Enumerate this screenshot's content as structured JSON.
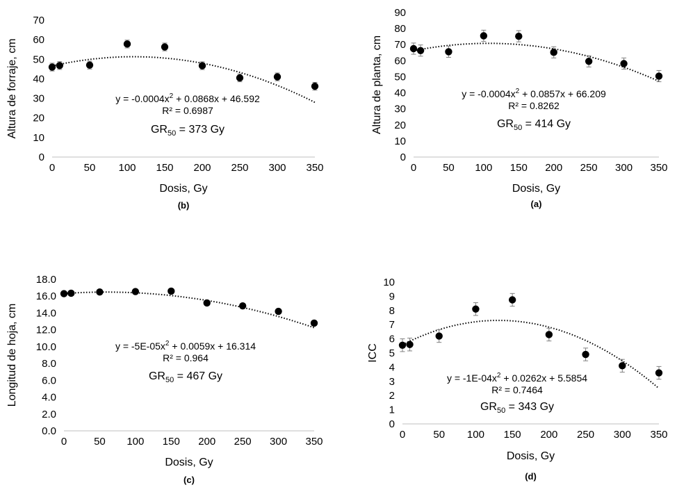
{
  "chart_data": [
    {
      "type": "scatter",
      "caption": "(b)",
      "xlabel": "Dosis, Gy",
      "ylabel": "Altura de forraje, cm",
      "xlim": [
        0,
        350
      ],
      "ylim": [
        0,
        70
      ],
      "xticks": [
        "0",
        "50",
        "100",
        "150",
        "200",
        "250",
        "300",
        "350"
      ],
      "yticks": [
        "0",
        "10",
        "20",
        "30",
        "40",
        "50",
        "60",
        "70"
      ],
      "x": [
        0,
        10,
        50,
        100,
        150,
        200,
        250,
        300,
        350
      ],
      "y": [
        46,
        46.8,
        47,
        57.8,
        56.3,
        46.7,
        40.5,
        41,
        36.2
      ],
      "error": [
        2,
        2,
        2,
        2,
        2,
        2,
        2,
        2,
        2
      ],
      "trendline": {
        "type": "polynomial-2",
        "coefficients": [
          -0.0004,
          0.0868,
          46.592
        ]
      },
      "equation": {
        "prefix": "y = -0.0004x",
        "exp": "2",
        "suffix": " + 0.0868x + 46.592"
      },
      "r2": "R² = 0.6987",
      "gr50": {
        "prefix": "GR",
        "sub": "50",
        "suffix": " = 373 Gy"
      },
      "grid": false
    },
    {
      "type": "scatter",
      "caption": "(a)",
      "xlabel": "Dosis, Gy",
      "ylabel": "Altura de planta, cm",
      "xlim": [
        0,
        350
      ],
      "ylim": [
        0,
        90
      ],
      "xticks": [
        "0",
        "50",
        "100",
        "150",
        "200",
        "250",
        "300",
        "350"
      ],
      "yticks": [
        "0",
        "10",
        "20",
        "30",
        "40",
        "50",
        "60",
        "70",
        "80",
        "90"
      ],
      "x": [
        0,
        10,
        50,
        100,
        150,
        200,
        250,
        300,
        350
      ],
      "y": [
        67.5,
        66.3,
        65.6,
        75.5,
        75.2,
        65.2,
        59.6,
        58.2,
        50.4
      ],
      "error": [
        3.5,
        3.5,
        3.5,
        3.5,
        3.5,
        3.5,
        3.5,
        3.5,
        3.5
      ],
      "trendline": {
        "type": "polynomial-2",
        "coefficients": [
          -0.0004,
          0.0857,
          66.209
        ]
      },
      "equation": {
        "prefix": "y = -0.0004x",
        "exp": "2",
        "suffix": " + 0.0857x + 66.209"
      },
      "r2": "R² = 0.8262",
      "gr50": {
        "prefix": "GR",
        "sub": "50",
        "suffix": " = 414 Gy"
      },
      "grid": false
    },
    {
      "type": "scatter",
      "caption": "(c)",
      "xlabel": "Dosis, Gy",
      "ylabel": "Longitud de hoja, cm",
      "xlim": [
        0,
        350
      ],
      "ylim": [
        0,
        18
      ],
      "xticks": [
        "0",
        "50",
        "100",
        "150",
        "200",
        "250",
        "300",
        "350"
      ],
      "yticks": [
        "0.0",
        "2.0",
        "4.0",
        "6.0",
        "8.0",
        "10.0",
        "12.0",
        "14.0",
        "16.0",
        "18.0"
      ],
      "x": [
        0,
        10,
        50,
        100,
        150,
        200,
        250,
        300,
        350
      ],
      "y": [
        16.3,
        16.35,
        16.5,
        16.55,
        16.6,
        15.2,
        14.85,
        14.2,
        12.8
      ],
      "error": [
        0.25,
        0.25,
        0.25,
        0.25,
        0.25,
        0.25,
        0.25,
        0.25,
        0.15
      ],
      "trendline": {
        "type": "polynomial-2",
        "coefficients": [
          -5e-05,
          0.0059,
          16.314
        ]
      },
      "equation": {
        "prefix": "y = -5E-05x",
        "exp": "2",
        "suffix": " + 0.0059x + 16.314"
      },
      "r2": "R² = 0.964",
      "gr50": {
        "prefix": "GR",
        "sub": "50",
        "suffix": " = 467 Gy"
      },
      "grid": false
    },
    {
      "type": "scatter",
      "caption": "(d)",
      "xlabel": "Dosis, Gy",
      "ylabel": "ICC",
      "xlim": [
        0,
        350
      ],
      "ylim": [
        0,
        10
      ],
      "xticks": [
        "0",
        "50",
        "100",
        "150",
        "200",
        "250",
        "300",
        "350"
      ],
      "yticks": [
        "0",
        "1",
        "2",
        "3",
        "4",
        "5",
        "6",
        "7",
        "8",
        "9",
        "10"
      ],
      "x": [
        0,
        10,
        50,
        100,
        150,
        200,
        250,
        300,
        350
      ],
      "y": [
        5.55,
        5.6,
        6.2,
        8.1,
        8.75,
        6.3,
        4.9,
        4.1,
        3.6
      ],
      "error": [
        0.45,
        0.45,
        0.45,
        0.45,
        0.45,
        0.45,
        0.45,
        0.45,
        0.45
      ],
      "trendline": {
        "type": "polynomial-2",
        "coefficients": [
          -0.0001,
          0.0262,
          5.5854
        ]
      },
      "equation": {
        "prefix": "y = -1E-04x",
        "exp": "2",
        "suffix": " + 0.0262x + 5.5854"
      },
      "r2": "R² = 0.7464",
      "gr50": {
        "prefix": "GR",
        "sub": "50",
        "suffix": " = 343 Gy"
      },
      "grid": false
    }
  ]
}
